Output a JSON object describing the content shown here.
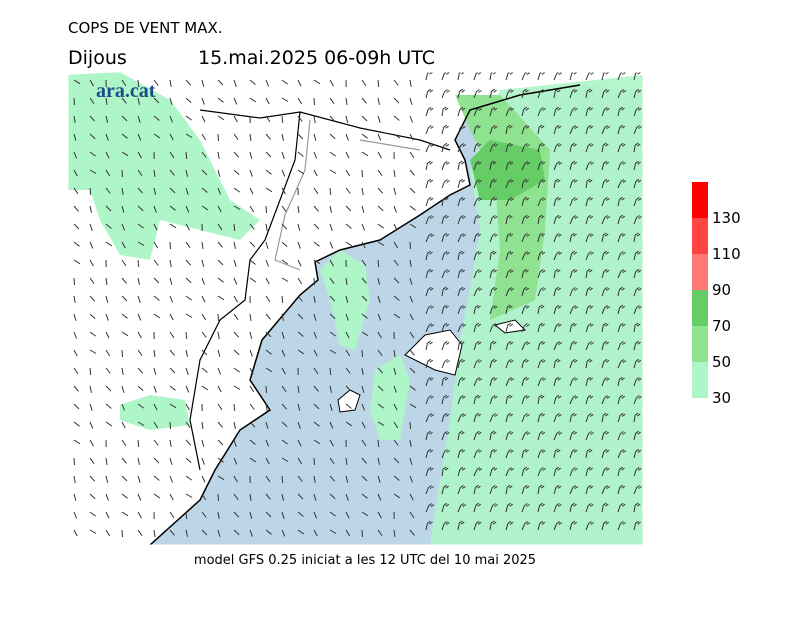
{
  "title": "COPS DE VENT MAX.",
  "day": "Dijous",
  "period": "15.mai.2025 06-09h UTC",
  "footer": "model GFS 0.25 iniciat a les 12 UTC del 10 mai 2025",
  "logo": "ara.cat",
  "colorbar": {
    "ticks": [
      30,
      50,
      70,
      90,
      110,
      130
    ],
    "colors": [
      "#aef5c8",
      "#8fe28f",
      "#66cc66",
      "#ff7777",
      "#ff4444",
      "#ff0000"
    ]
  }
}
